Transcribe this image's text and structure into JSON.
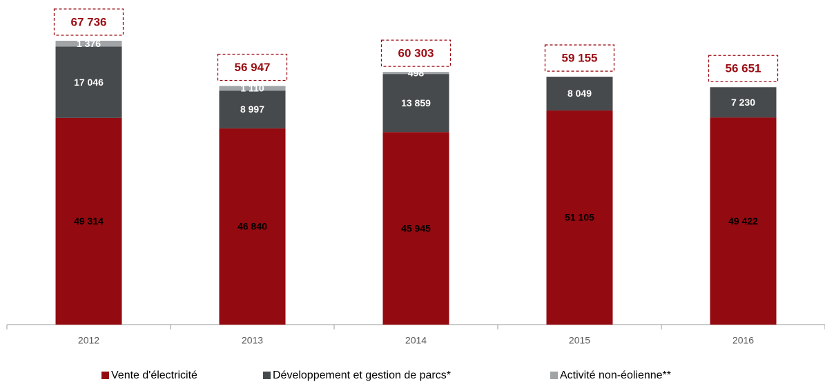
{
  "chart_data": {
    "type": "stacked_bar",
    "categories": [
      "2012",
      "2013",
      "2014",
      "2015",
      "2016"
    ],
    "series": [
      {
        "name": "Vente d'électricité",
        "color": "#930a10",
        "label_color": "#000000",
        "values": [
          49314,
          46840,
          45945,
          51105,
          49422
        ],
        "value_labels": [
          "49 314",
          "46 840",
          "45 945",
          "51 105",
          "49 422"
        ]
      },
      {
        "name": "Développement et gestion de parcs*",
        "color": "#474a4c",
        "label_color": "#ffffff",
        "values": [
          17046,
          8997,
          13859,
          8049,
          7230
        ],
        "value_labels": [
          "17 046",
          "8 997",
          "13 859",
          "8 049",
          "7 230"
        ]
      },
      {
        "name": "Activité non-éolienne**",
        "color": "#a0a4a6",
        "label_color": "#ffffff",
        "values": [
          1376,
          1110,
          498,
          null,
          null
        ],
        "value_labels": [
          "1 376",
          "1 110",
          "498",
          null,
          null
        ]
      }
    ],
    "totals": [
      67736,
      56947,
      60303,
      59155,
      56651
    ],
    "total_labels": [
      "67 736",
      "56 947",
      "60 303",
      "59 155",
      "56 651"
    ],
    "total_color": "#9b0d14"
  }
}
